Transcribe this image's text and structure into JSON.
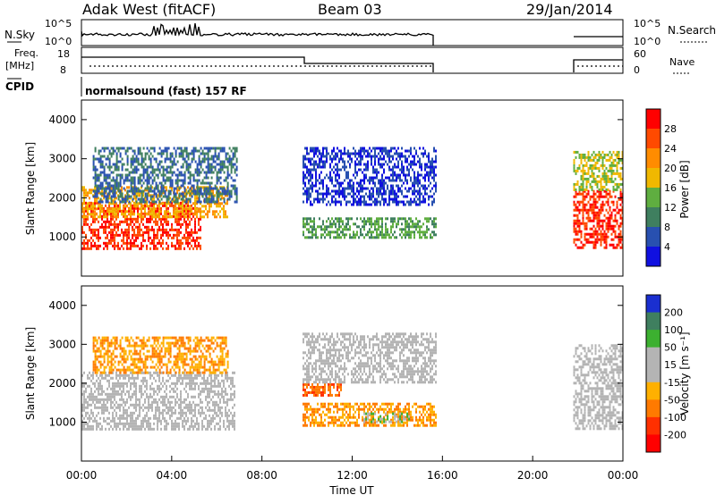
{
  "header": {
    "station": "Adak West (fitACF)",
    "beam": "Beam 03",
    "date": "29/Jan/2014"
  },
  "panels": {
    "nsky_label": "N.Sky",
    "nsky_ticks": [
      "10^5",
      "10^0"
    ],
    "nsearch_label": "N.Search",
    "nsearch_ticks": [
      "10^5",
      "10^0"
    ],
    "freq_label_line1": "Freq.",
    "freq_label_line2": "[MHz]",
    "freq_ticks": [
      "18",
      "8"
    ],
    "nave_label": "Nave",
    "nave_ticks": [
      "60",
      "0"
    ],
    "cpid_label": "CPID",
    "cpid_text": "normalsound (fast) 157 RF"
  },
  "axes": {
    "ylabel": "Slant Range [km]",
    "xlabel": "Time UT",
    "x_ticks": [
      "00:00",
      "04:00",
      "08:00",
      "12:00",
      "16:00",
      "20:00",
      "00:00"
    ],
    "y_ticks": [
      "4000",
      "3000",
      "2000",
      "1000"
    ]
  },
  "colorbars": {
    "power": {
      "label": "Power [dB]",
      "ticks": [
        "28",
        "24",
        "20",
        "16",
        "12",
        "8",
        "4"
      ],
      "colors": [
        "#ff0000",
        "#ff4a00",
        "#ff8c00",
        "#f0b800",
        "#5fae40",
        "#3f7f5f",
        "#2850b0",
        "#1010e0"
      ]
    },
    "velocity": {
      "label": "Velocity [m s⁻¹]",
      "ticks": [
        "200",
        "100",
        "50",
        "15",
        "-15",
        "-50",
        "-100",
        "-200"
      ],
      "colors": [
        "#1a2fd0",
        "#3f7f5f",
        "#3cb030",
        "#b4b4b4",
        "#b4b4b4",
        "#ffb000",
        "#ff7a00",
        "#ff3000",
        "#ff0000"
      ]
    }
  },
  "chart_data": [
    {
      "type": "heatmap",
      "title": "Power",
      "x_unit": "hours UT",
      "xlim": [
        0,
        24
      ],
      "ylim": [
        0,
        4500
      ],
      "data_gaps_hours": [
        [
          15.7,
          21.8
        ]
      ],
      "layers": [
        {
          "t0": 0.0,
          "t1": 5.3,
          "r0": 700,
          "r1": 1900,
          "level": 0
        },
        {
          "t0": 0.0,
          "t1": 6.5,
          "r0": 1500,
          "r1": 2300,
          "level": 2
        },
        {
          "t0": 0.5,
          "t1": 6.9,
          "r0": 1900,
          "r1": 3300,
          "level": 5
        },
        {
          "t0": 9.8,
          "t1": 15.7,
          "r0": 1000,
          "r1": 1500,
          "level": 4
        },
        {
          "t0": 9.8,
          "t1": 15.7,
          "r0": 1800,
          "r1": 3300,
          "level": 6
        },
        {
          "t0": 21.8,
          "t1": 24.0,
          "r0": 700,
          "r1": 2200,
          "level": 0
        },
        {
          "t0": 21.8,
          "t1": 24.0,
          "r0": 2200,
          "r1": 3200,
          "level": 3
        }
      ]
    },
    {
      "type": "heatmap",
      "title": "Velocity",
      "x_unit": "hours UT",
      "xlim": [
        0,
        24
      ],
      "ylim": [
        0,
        4500
      ],
      "data_gaps_hours": [
        [
          15.7,
          21.8
        ]
      ],
      "layers": [
        {
          "t0": 0.0,
          "t1": 6.8,
          "r0": 800,
          "r1": 2300,
          "level": 3
        },
        {
          "t0": 0.5,
          "t1": 6.5,
          "r0": 2300,
          "r1": 3200,
          "level": 5
        },
        {
          "t0": 9.8,
          "t1": 15.7,
          "r0": 900,
          "r1": 1500,
          "level": 5
        },
        {
          "t0": 12.5,
          "t1": 14.5,
          "r0": 1000,
          "r1": 1250,
          "level": 2
        },
        {
          "t0": 9.8,
          "t1": 11.5,
          "r0": 1700,
          "r1": 2000,
          "level": 6
        },
        {
          "t0": 9.8,
          "t1": 15.7,
          "r0": 2000,
          "r1": 3300,
          "level": 3
        },
        {
          "t0": 21.8,
          "t1": 24.0,
          "r0": 800,
          "r1": 3000,
          "level": 3
        }
      ]
    }
  ]
}
